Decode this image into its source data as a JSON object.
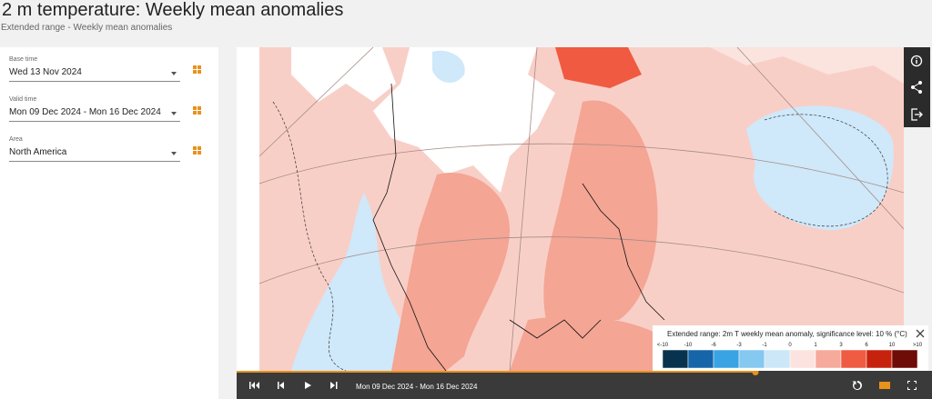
{
  "header": {
    "title": "2 m temperature: Weekly mean anomalies",
    "subtitle": "Extended range - Weekly mean anomalies"
  },
  "controls": [
    {
      "label": "Base time",
      "value": "Wed 13 Nov 2024"
    },
    {
      "label": "Valid time",
      "value": "Mon 09 Dec 2024 - Mon 16 Dec 2024"
    },
    {
      "label": "Area",
      "value": "North America"
    }
  ],
  "legend": {
    "title": "Extended range: 2m T weekly mean anomaly, significance level: 10 % (°C)",
    "labels": [
      "<-10",
      "-10",
      "-6",
      "-3",
      "-1",
      "0",
      "1",
      "3",
      "6",
      "10",
      ">10"
    ],
    "colors": [
      "#08334f",
      "#1565a8",
      "#3aa3e3",
      "#85c8f0",
      "#cbe7f8",
      "#fde3df",
      "#f6aa9c",
      "#ef5b43",
      "#c7220e",
      "#6e0c08"
    ]
  },
  "player": {
    "period": "Mon 09 Dec 2024 - Mon 16 Dec 2024"
  }
}
